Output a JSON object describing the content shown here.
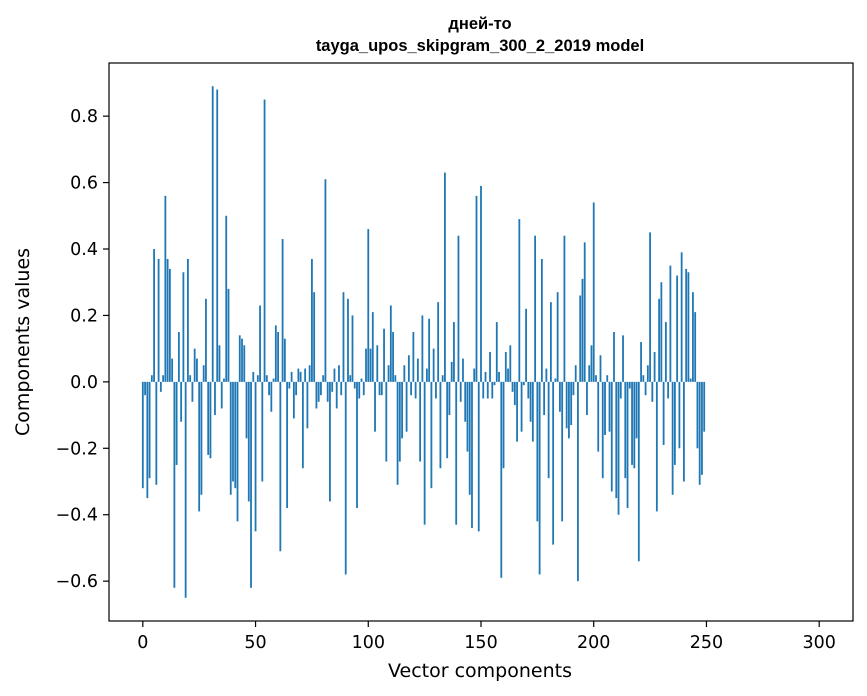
{
  "chart_data": {
    "type": "bar",
    "title_line1": "дней-то",
    "title_line2": "tayga_upos_skipgram_300_2_2019 model",
    "xlabel": "Vector components",
    "ylabel": "Components values",
    "xlim": [
      -15,
      315
    ],
    "ylim": [
      -0.72,
      0.96
    ],
    "xticks": [
      0,
      50,
      100,
      150,
      200,
      250,
      300
    ],
    "xtick_labels": [
      "0",
      "50",
      "100",
      "150",
      "200",
      "250",
      "300"
    ],
    "yticks": [
      -0.6,
      -0.4,
      -0.2,
      0.0,
      0.2,
      0.4,
      0.6,
      0.8
    ],
    "ytick_labels": [
      "−0.6",
      "−0.4",
      "−0.2",
      "0.0",
      "0.2",
      "0.4",
      "0.6",
      "0.8"
    ],
    "bar_color": "#1f77b4",
    "grid": false,
    "values": [
      -0.32,
      -0.04,
      -0.35,
      -0.29,
      0.02,
      0.4,
      -0.31,
      0.37,
      -0.03,
      0.02,
      0.56,
      0.37,
      0.34,
      0.07,
      -0.62,
      -0.25,
      0.15,
      -0.12,
      0.33,
      -0.65,
      0.37,
      0.02,
      -0.06,
      0.1,
      0.07,
      -0.39,
      -0.34,
      0.05,
      0.25,
      -0.22,
      -0.23,
      0.89,
      -0.1,
      0.88,
      0.11,
      -0.08,
      0.01,
      0.5,
      0.28,
      -0.34,
      -0.3,
      -0.32,
      -0.42,
      0.14,
      0.13,
      0.11,
      -0.17,
      -0.36,
      -0.62,
      0.03,
      -0.45,
      0.02,
      0.23,
      -0.3,
      0.85,
      0.02,
      -0.04,
      -0.09,
      0.01,
      0.17,
      0.15,
      -0.51,
      0.43,
      0.13,
      -0.38,
      -0.02,
      0.03,
      -0.11,
      -0.04,
      0.04,
      0.03,
      -0.26,
      0.04,
      -0.14,
      0.05,
      0.37,
      0.27,
      -0.08,
      -0.06,
      -0.04,
      0.02,
      0.61,
      -0.06,
      -0.36,
      -0.03,
      0.04,
      -0.08,
      0.05,
      -0.04,
      0.27,
      -0.58,
      0.25,
      0.02,
      0.2,
      -0.02,
      -0.38,
      -0.05,
      0.01,
      -0.04,
      0.1,
      0.46,
      0.1,
      0.21,
      -0.15,
      0.11,
      -0.04,
      -0.04,
      0.16,
      -0.24,
      0.05,
      0.23,
      0.15,
      0.02,
      -0.31,
      -0.24,
      -0.17,
      0.05,
      -0.15,
      0.08,
      -0.04,
      0.15,
      -0.05,
      0.07,
      -0.24,
      0.2,
      -0.43,
      0.04,
      0.19,
      -0.32,
      0.1,
      -0.05,
      0.24,
      -0.26,
      0.02,
      0.63,
      -0.23,
      -0.1,
      0.06,
      0.18,
      -0.43,
      0.44,
      -0.06,
      0.07,
      -0.12,
      -0.21,
      -0.34,
      -0.44,
      0.04,
      0.56,
      -0.45,
      0.59,
      -0.05,
      0.03,
      -0.05,
      0.09,
      -0.05,
      -0.01,
      0.18,
      0.03,
      -0.59,
      -0.26,
      0.09,
      0.04,
      0.11,
      -0.03,
      -0.07,
      -0.18,
      0.49,
      -0.15,
      -0.01,
      0.22,
      -0.05,
      -0.12,
      -0.18,
      0.44,
      -0.42,
      -0.58,
      0.37,
      -0.1,
      0.04,
      -0.29,
      0.24,
      -0.49,
      0.01,
      0.27,
      -0.09,
      -0.42,
      0.44,
      -0.14,
      -0.17,
      -0.13,
      -0.04,
      0.05,
      -0.6,
      0.26,
      0.31,
      0.42,
      -0.1,
      0.05,
      0.11,
      0.54,
      0.02,
      -0.21,
      0.08,
      -0.29,
      -0.16,
      0.02,
      -0.15,
      -0.33,
      0.15,
      -0.35,
      -0.4,
      -0.05,
      0.14,
      -0.29,
      -0.38,
      -0.02,
      -0.25,
      -0.26,
      -0.17,
      -0.54,
      0.12,
      0.02,
      -0.04,
      0.05,
      0.45,
      -0.06,
      0.09,
      -0.39,
      0.25,
      0.3,
      -0.19,
      0.18,
      -0.05,
      0.35,
      -0.34,
      -0.25,
      0.32,
      -0.2,
      0.39,
      -0.3,
      0.34,
      0.33,
      0.01,
      0.27,
      0.21,
      -0.2,
      -0.31,
      -0.28,
      -0.15
    ]
  }
}
